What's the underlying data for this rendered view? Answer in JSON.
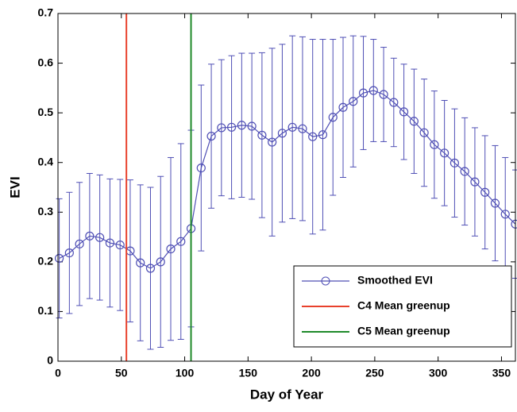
{
  "chart_data": {
    "type": "line",
    "xlabel": "Day of Year",
    "ylabel": "EVI",
    "xlim": [
      0,
      361
    ],
    "ylim": [
      0,
      0.7
    ],
    "xticks": [
      0,
      50,
      100,
      150,
      200,
      250,
      300,
      350
    ],
    "yticks": [
      0,
      0.1,
      0.2,
      0.3,
      0.4,
      0.5,
      0.6,
      0.7
    ],
    "legend_location": "lower right",
    "x": [
      1,
      9,
      17,
      25,
      33,
      41,
      49,
      57,
      65,
      73,
      81,
      89,
      97,
      105,
      113,
      121,
      129,
      137,
      145,
      153,
      161,
      169,
      177,
      185,
      193,
      201,
      209,
      217,
      225,
      233,
      241,
      249,
      257,
      265,
      273,
      281,
      289,
      297,
      305,
      313,
      321,
      329,
      337,
      345,
      353,
      361
    ],
    "series": [
      {
        "name": "Smoothed EVI",
        "color": "#4f4fb5",
        "values": [
          0.207,
          0.218,
          0.236,
          0.252,
          0.249,
          0.238,
          0.234,
          0.222,
          0.198,
          0.187,
          0.2,
          0.226,
          0.241,
          0.267,
          0.389,
          0.453,
          0.47,
          0.471,
          0.475,
          0.473,
          0.455,
          0.441,
          0.459,
          0.471,
          0.468,
          0.452,
          0.456,
          0.491,
          0.511,
          0.523,
          0.54,
          0.545,
          0.537,
          0.521,
          0.502,
          0.483,
          0.46,
          0.436,
          0.419,
          0.399,
          0.382,
          0.361,
          0.34,
          0.318,
          0.296,
          0.276
        ],
        "errors": [
          0.12,
          0.122,
          0.124,
          0.126,
          0.126,
          0.129,
          0.132,
          0.143,
          0.157,
          0.163,
          0.172,
          0.184,
          0.197,
          0.198,
          0.167,
          0.145,
          0.137,
          0.144,
          0.145,
          0.147,
          0.166,
          0.189,
          0.179,
          0.184,
          0.185,
          0.196,
          0.192,
          0.157,
          0.141,
          0.132,
          0.114,
          0.103,
          0.095,
          0.089,
          0.096,
          0.105,
          0.108,
          0.108,
          0.106,
          0.109,
          0.108,
          0.109,
          0.114,
          0.116,
          0.114,
          0.109
        ]
      }
    ],
    "vlines": [
      {
        "name": "C4 Mean greenup",
        "color": "#e8412c",
        "x": 54
      },
      {
        "name": "C5 Mean greenup",
        "color": "#1f8a2a",
        "x": 105
      }
    ]
  }
}
